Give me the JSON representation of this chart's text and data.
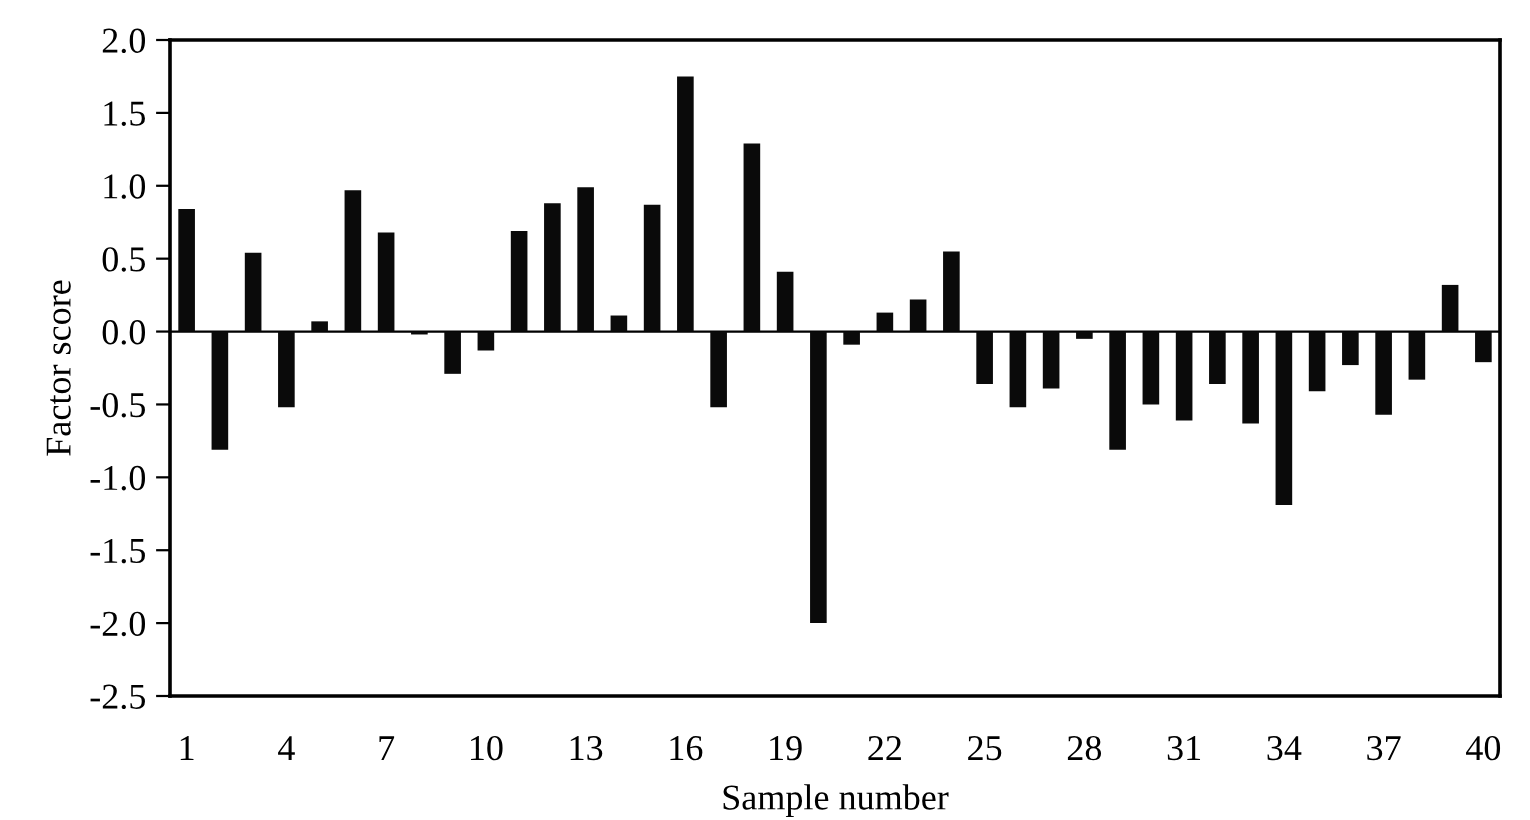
{
  "chart_data": {
    "type": "bar",
    "xlabel": "Sample number",
    "ylabel": "Factor score",
    "categories": [
      "1",
      null,
      null,
      "4",
      null,
      null,
      "7",
      null,
      null,
      "10",
      null,
      null,
      "13",
      null,
      null,
      "16",
      null,
      null,
      "19",
      null,
      null,
      "22",
      null,
      null,
      "25",
      null,
      null,
      "28",
      null,
      null,
      "31",
      null,
      null,
      "34",
      null,
      null,
      "37",
      null,
      null,
      "40"
    ],
    "values": [
      0.84,
      -0.81,
      0.54,
      -0.52,
      0.07,
      0.97,
      0.68,
      -0.02,
      -0.29,
      -0.13,
      0.69,
      0.88,
      0.99,
      0.11,
      0.87,
      1.75,
      -0.52,
      1.29,
      0.41,
      -2.0,
      -0.09,
      0.13,
      0.22,
      0.55,
      -0.36,
      -0.52,
      -0.39,
      -0.05,
      -0.81,
      -0.5,
      -0.61,
      -0.36,
      -0.63,
      -1.19,
      -0.41,
      -0.23,
      -0.57,
      -0.33,
      0.32,
      -0.21
    ],
    "color": "#0a0a0a",
    "ylim": [
      -2.5,
      2.0
    ],
    "yticks": [
      {
        "value": -2.5,
        "label": "-2.5"
      },
      {
        "value": -2.0,
        "label": "-2.0"
      },
      {
        "value": -1.5,
        "label": "-1.5"
      },
      {
        "value": -1.0,
        "label": "-1.0"
      },
      {
        "value": -0.5,
        "label": "-0.5"
      },
      {
        "value": 0.0,
        "label": "0.0"
      },
      {
        "value": 0.5,
        "label": "0.5"
      },
      {
        "value": 1.0,
        "label": "1.0"
      },
      {
        "value": 1.5,
        "label": "1.5"
      },
      {
        "value": 2.0,
        "label": "2.0"
      }
    ],
    "legend": false
  }
}
